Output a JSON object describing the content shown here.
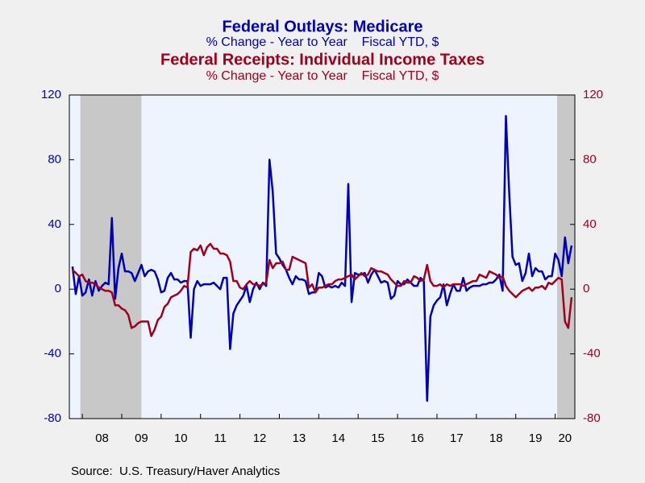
{
  "chart_data": {
    "type": "line",
    "series": [
      {
        "name": "Federal Outlays: Medicare",
        "subtitle": "% Change - Year to Year    Fiscal YTD, $",
        "color": "#0000b4",
        "axis": "y",
        "values": [
          14,
          -3,
          8,
          -4,
          -2,
          6,
          -4,
          5,
          -1,
          2,
          4,
          3,
          44,
          -6,
          13,
          22,
          11,
          11,
          10,
          5,
          10,
          15,
          8,
          11,
          12,
          11,
          6,
          -2,
          -1,
          7,
          10,
          6,
          6,
          4,
          5,
          5,
          -30,
          0,
          5,
          2,
          3,
          3,
          3,
          4,
          2,
          0,
          7,
          7,
          -37,
          -15,
          -10,
          -7,
          -4,
          2,
          -8,
          0,
          4,
          0,
          4,
          2,
          80,
          60,
          22,
          19,
          15,
          12,
          7,
          3,
          8,
          6,
          6,
          5,
          -3,
          -2,
          -2,
          10,
          8,
          1,
          2,
          1,
          2,
          1,
          4,
          2,
          65,
          -8,
          10,
          9,
          9,
          10,
          4,
          9,
          12,
          8,
          4,
          5,
          4,
          -6,
          -4,
          5,
          3,
          3,
          6,
          4,
          2,
          2,
          7,
          5,
          -69,
          -17,
          -10,
          -7,
          -5,
          3,
          -10,
          -3,
          3,
          -1,
          -1,
          7,
          -1,
          1,
          2,
          2,
          2,
          3,
          3,
          4,
          4,
          6,
          9,
          -1,
          107,
          60,
          20,
          15,
          16,
          5,
          10,
          22,
          8,
          13,
          11,
          11,
          6,
          8,
          8,
          22,
          18,
          8,
          32,
          16,
          27
        ]
      },
      {
        "name": "Federal Receipts: Individual Income Taxes",
        "subtitle": "% Change - Year to Year    Fiscal YTD, $",
        "color": "#a0001e",
        "axis": "y2",
        "values": [
          12,
          10,
          8,
          9,
          5,
          4,
          4,
          3,
          1,
          0,
          -1,
          -1,
          -2,
          -10,
          -10,
          -12,
          -13,
          -16,
          -24,
          -23,
          -21,
          -20,
          -20,
          -20,
          -29,
          -25,
          -19,
          -17,
          -11,
          -9,
          -5,
          -4,
          -3,
          -1,
          2,
          1,
          23,
          25,
          24,
          27,
          21,
          26,
          28,
          25,
          25,
          22,
          22,
          21,
          17,
          5,
          5,
          1,
          0,
          3,
          5,
          3,
          3,
          2,
          3,
          4,
          18,
          13,
          16,
          16,
          17,
          12,
          12,
          20,
          19,
          18,
          17,
          16,
          1,
          3,
          -2,
          1,
          1,
          2,
          3,
          3,
          5,
          6,
          6,
          7,
          8,
          9,
          6,
          8,
          10,
          8,
          9,
          13,
          12,
          11,
          11,
          10,
          9,
          6,
          4,
          2,
          2,
          5,
          4,
          4,
          8,
          7,
          5,
          6,
          15,
          5,
          2,
          2,
          3,
          1,
          3,
          2,
          3,
          3,
          3,
          2,
          3,
          4,
          5,
          5,
          9,
          8,
          7,
          11,
          10,
          9,
          7,
          8,
          2,
          -1,
          -3,
          -5,
          -3,
          -1,
          0,
          1,
          -1,
          1,
          1,
          2,
          0,
          4,
          3,
          5,
          7,
          6,
          -20,
          -24,
          -5
        ]
      }
    ],
    "x": [
      2007.75,
      2007.833,
      2007.917,
      2008,
      2008.083,
      2008.167,
      2008.25,
      2008.333,
      2008.417,
      2008.5,
      2008.583,
      2008.667,
      2008.75,
      2008.833,
      2008.917,
      2009,
      2009.083,
      2009.167,
      2009.25,
      2009.333,
      2009.417,
      2009.5,
      2009.583,
      2009.667,
      2009.75,
      2009.833,
      2009.917,
      2010,
      2010.083,
      2010.167,
      2010.25,
      2010.333,
      2010.417,
      2010.5,
      2010.583,
      2010.667,
      2010.75,
      2010.833,
      2010.917,
      2011,
      2011.083,
      2011.167,
      2011.25,
      2011.333,
      2011.417,
      2011.5,
      2011.583,
      2011.667,
      2011.75,
      2011.833,
      2011.917,
      2012,
      2012.083,
      2012.167,
      2012.25,
      2012.333,
      2012.417,
      2012.5,
      2012.583,
      2012.667,
      2012.75,
      2012.833,
      2012.917,
      2013,
      2013.083,
      2013.167,
      2013.25,
      2013.333,
      2013.417,
      2013.5,
      2013.583,
      2013.667,
      2013.75,
      2013.833,
      2013.917,
      2014,
      2014.083,
      2014.167,
      2014.25,
      2014.333,
      2014.417,
      2014.5,
      2014.583,
      2014.667,
      2014.75,
      2014.833,
      2014.917,
      2015,
      2015.083,
      2015.167,
      2015.25,
      2015.333,
      2015.417,
      2015.5,
      2015.583,
      2015.667,
      2015.75,
      2015.833,
      2015.917,
      2016,
      2016.083,
      2016.167,
      2016.25,
      2016.333,
      2016.417,
      2016.5,
      2016.583,
      2016.667,
      2016.75,
      2016.833,
      2016.917,
      2017,
      2017.083,
      2017.167,
      2017.25,
      2017.333,
      2017.417,
      2017.5,
      2017.583,
      2017.667,
      2017.75,
      2017.833,
      2017.917,
      2018,
      2018.083,
      2018.167,
      2018.25,
      2018.333,
      2018.417,
      2018.5,
      2018.583,
      2018.667,
      2018.75,
      2018.833,
      2018.917,
      2019,
      2019.083,
      2019.167,
      2019.25,
      2019.333,
      2019.417,
      2019.5,
      2019.583,
      2019.667,
      2019.75,
      2019.833,
      2019.917,
      2020,
      2020.083,
      2020.167,
      2020.25,
      2020.333,
      2020.417
    ],
    "xlim": [
      2007.67,
      2020.5
    ],
    "xticks": [
      {
        "value": 2008,
        "label": "08"
      },
      {
        "value": 2009,
        "label": "09"
      },
      {
        "value": 2010,
        "label": "10"
      },
      {
        "value": 2011,
        "label": "11"
      },
      {
        "value": 2012,
        "label": "12"
      },
      {
        "value": 2013,
        "label": "13"
      },
      {
        "value": 2014,
        "label": "14"
      },
      {
        "value": 2015,
        "label": "15"
      },
      {
        "value": 2016,
        "label": "16"
      },
      {
        "value": 2017,
        "label": "17"
      },
      {
        "value": 2018,
        "label": "18"
      },
      {
        "value": 2019,
        "label": "19"
      },
      {
        "value": 2020,
        "label": "20"
      }
    ],
    "ylim": [
      -80,
      120
    ],
    "yticks": [
      -80,
      -40,
      0,
      40,
      80,
      120
    ],
    "y2lim": [
      -80,
      120
    ],
    "y2ticks": [
      -80,
      -40,
      0,
      40,
      80,
      120
    ],
    "recessions": [
      [
        2007.95,
        2009.5
      ],
      [
        2020.05,
        2020.5
      ]
    ],
    "source": "Source:  U.S. Treasury/Haver Analytics"
  }
}
